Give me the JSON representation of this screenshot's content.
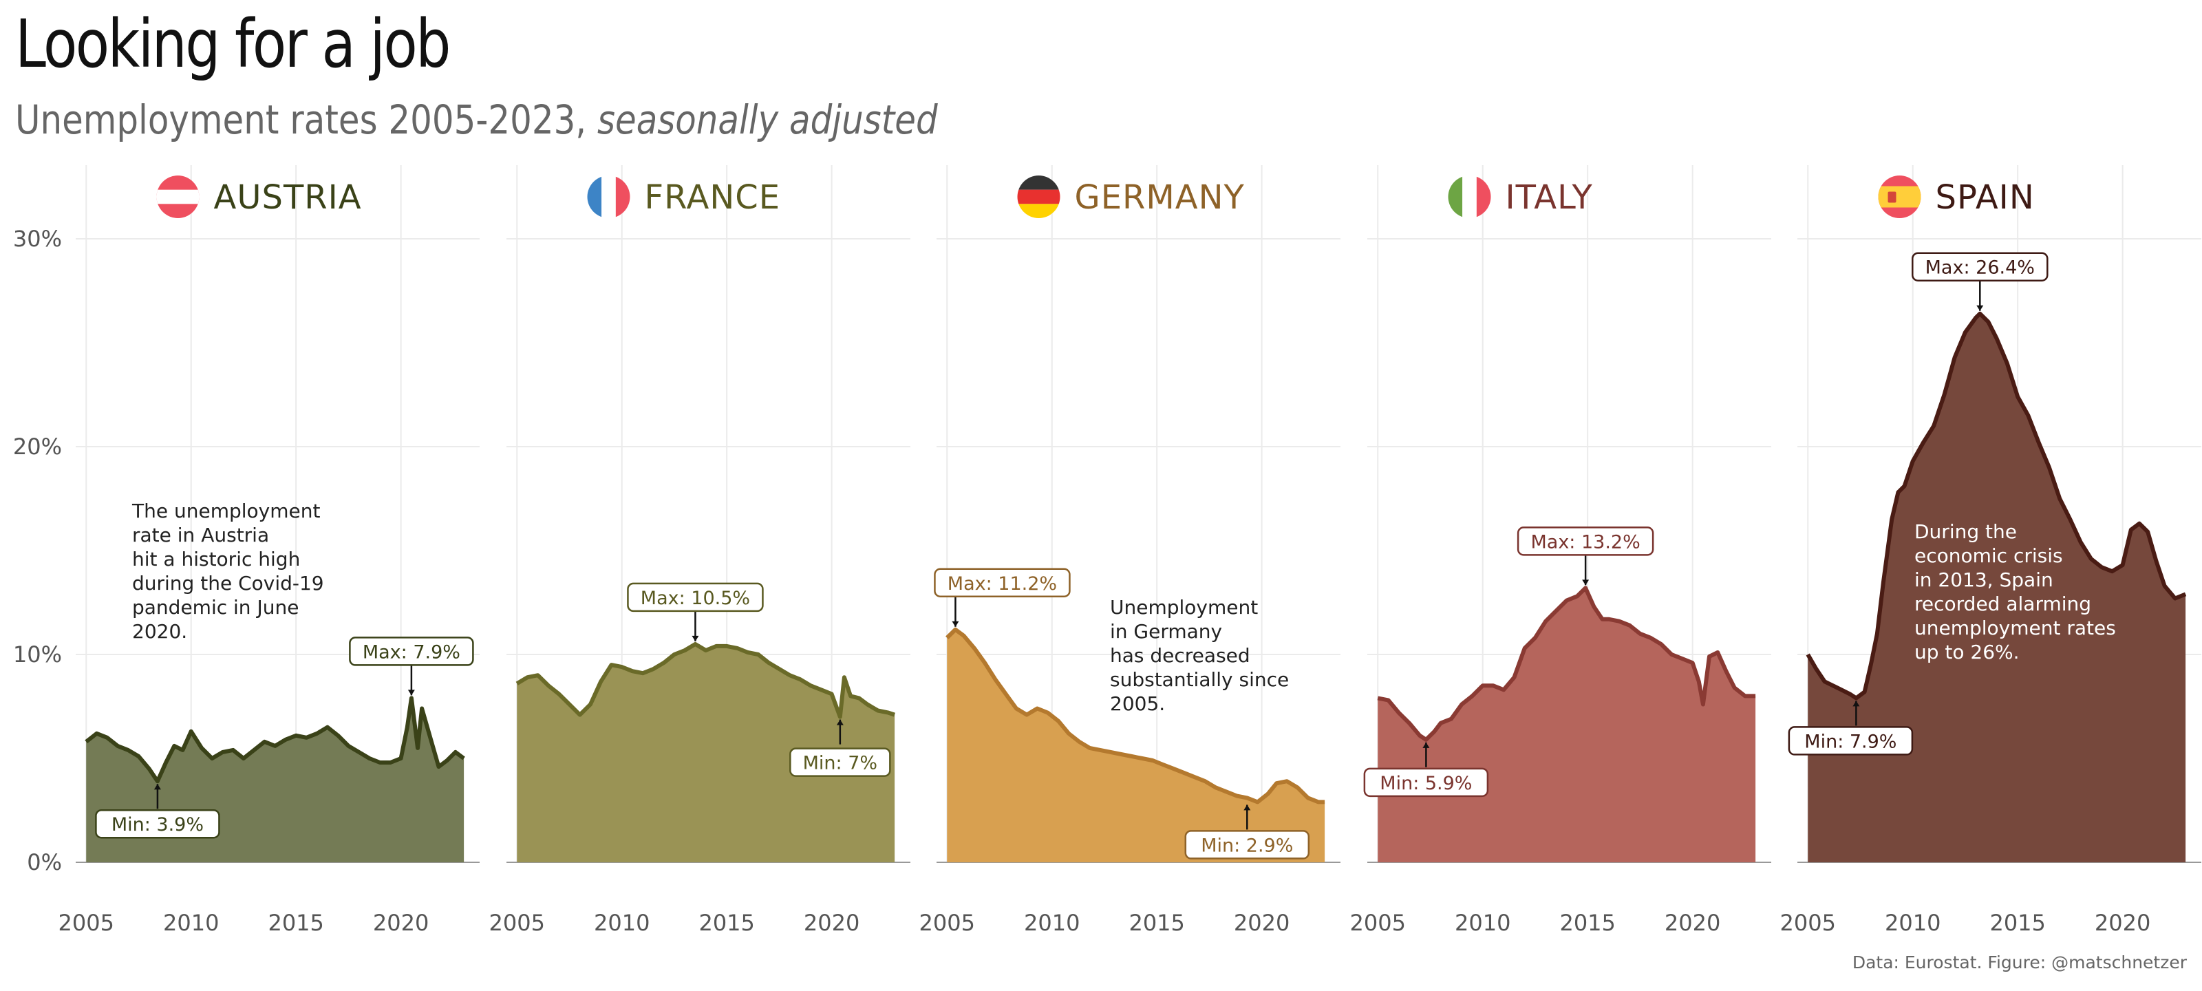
{
  "title": "Looking for a job",
  "subtitle_main": "Unemployment rates 2005-2023,",
  "subtitle_italic": "seasonally adjusted",
  "caption": "Data: Eurostat. Figure: @matschnetzer",
  "colors": {
    "grid": "#ebebeb",
    "axis_text": "#555555"
  },
  "chart_data": {
    "type": "area",
    "xlabel": "",
    "ylabel": "",
    "xlim": [
      2004.5,
      2023.75
    ],
    "ylim": [
      0,
      30
    ],
    "x_ticks": [
      2005,
      2010,
      2015,
      2020
    ],
    "x_tick_labels": [
      "2005",
      "2010",
      "2015",
      "2020"
    ],
    "y_ticks": [
      0,
      10,
      20,
      30
    ],
    "y_tick_labels": [
      "0%",
      "10%",
      "20%",
      "30%"
    ],
    "facets": [
      {
        "name": "AUSTRIA",
        "flag": "austria-flag",
        "line_color": "#3a4218",
        "fill_color": "#747b55",
        "label_color": "#3a4218",
        "x": [
          2005.0,
          2005.5,
          2006.0,
          2006.5,
          2007.0,
          2007.5,
          2008.0,
          2008.4,
          2008.8,
          2009.2,
          2009.6,
          2010.0,
          2010.5,
          2011.0,
          2011.5,
          2012.0,
          2012.5,
          2013.0,
          2013.5,
          2014.0,
          2014.5,
          2015.0,
          2015.5,
          2016.0,
          2016.5,
          2017.0,
          2017.5,
          2018.0,
          2018.5,
          2019.0,
          2019.5,
          2020.0,
          2020.3,
          2020.5,
          2020.8,
          2021.0,
          2021.4,
          2021.8,
          2022.2,
          2022.6,
          2023.0
        ],
        "values": [
          5.8,
          6.2,
          6.0,
          5.6,
          5.4,
          5.1,
          4.5,
          3.9,
          4.8,
          5.6,
          5.4,
          6.3,
          5.5,
          5.0,
          5.3,
          5.4,
          5.0,
          5.4,
          5.8,
          5.6,
          5.9,
          6.1,
          6.0,
          6.2,
          6.5,
          6.1,
          5.6,
          5.3,
          5.0,
          4.8,
          4.8,
          5.0,
          6.5,
          7.9,
          5.5,
          7.4,
          6.0,
          4.6,
          4.9,
          5.3,
          5.0
        ],
        "max": {
          "year": 2020.5,
          "value": 7.9,
          "label": "Max: 7.9%"
        },
        "min": {
          "year": 2008.4,
          "value": 3.9,
          "label": "Min: 3.9%"
        },
        "annotation": [
          "The unemployment",
          "rate in Austria",
          "hit a historic high",
          "during the Covid-19",
          "pandemic in June",
          "2020."
        ]
      },
      {
        "name": "FRANCE",
        "flag": "france-flag",
        "line_color": "#6a6a28",
        "fill_color": "#9a9355",
        "label_color": "#595920",
        "x": [
          2005.0,
          2005.5,
          2006.0,
          2006.5,
          2007.0,
          2007.5,
          2008.0,
          2008.5,
          2009.0,
          2009.5,
          2010.0,
          2010.5,
          2011.0,
          2011.5,
          2012.0,
          2012.5,
          2013.0,
          2013.5,
          2014.0,
          2014.5,
          2015.0,
          2015.5,
          2016.0,
          2016.5,
          2017.0,
          2017.5,
          2018.0,
          2018.5,
          2019.0,
          2019.5,
          2020.0,
          2020.4,
          2020.6,
          2020.9,
          2021.3,
          2021.7,
          2022.2,
          2022.7,
          2023.0
        ],
        "values": [
          8.6,
          8.9,
          9.0,
          8.5,
          8.1,
          7.6,
          7.1,
          7.6,
          8.7,
          9.5,
          9.4,
          9.2,
          9.1,
          9.3,
          9.6,
          10.0,
          10.2,
          10.5,
          10.2,
          10.4,
          10.4,
          10.3,
          10.1,
          10.0,
          9.6,
          9.3,
          9.0,
          8.8,
          8.5,
          8.3,
          8.1,
          7.0,
          8.9,
          8.0,
          7.9,
          7.6,
          7.3,
          7.2,
          7.1
        ],
        "max": {
          "year": 2013.5,
          "value": 10.5,
          "label": "Max: 10.5%"
        },
        "min": {
          "year": 2020.4,
          "value": 7.0,
          "label": "Min: 7%"
        },
        "annotation": []
      },
      {
        "name": "GERMANY",
        "flag": "germany-flag",
        "line_color": "#b4792e",
        "fill_color": "#d8a050",
        "label_color": "#8e6228",
        "x": [
          2005.0,
          2005.4,
          2005.8,
          2006.3,
          2006.8,
          2007.3,
          2007.8,
          2008.3,
          2008.8,
          2009.3,
          2009.8,
          2010.3,
          2010.8,
          2011.3,
          2011.8,
          2012.3,
          2012.8,
          2013.3,
          2013.8,
          2014.3,
          2014.8,
          2015.3,
          2015.8,
          2016.3,
          2016.8,
          2017.3,
          2017.8,
          2018.3,
          2018.8,
          2019.3,
          2019.8,
          2020.3,
          2020.7,
          2021.2,
          2021.7,
          2022.2,
          2022.7,
          2023.0
        ],
        "values": [
          10.8,
          11.2,
          10.9,
          10.3,
          9.6,
          8.8,
          8.1,
          7.4,
          7.1,
          7.4,
          7.2,
          6.8,
          6.2,
          5.8,
          5.5,
          5.4,
          5.3,
          5.2,
          5.1,
          5.0,
          4.9,
          4.7,
          4.5,
          4.3,
          4.1,
          3.9,
          3.6,
          3.4,
          3.2,
          3.1,
          2.9,
          3.3,
          3.8,
          3.9,
          3.6,
          3.1,
          2.9,
          2.9
        ],
        "max": {
          "year": 2005.4,
          "value": 11.2,
          "label": "Max: 11.2%"
        },
        "min": {
          "year": 2019.3,
          "value": 2.9,
          "label": "Min: 2.9%"
        },
        "annotation": [
          "Unemployment",
          "in Germany",
          "has decreased",
          "substantially since",
          "2005."
        ]
      },
      {
        "name": "ITALY",
        "flag": "italy-flag",
        "line_color": "#8a3a33",
        "fill_color": "#b5655c",
        "label_color": "#7a342e",
        "x": [
          2005.0,
          2005.5,
          2006.0,
          2006.5,
          2007.0,
          2007.3,
          2007.7,
          2008.0,
          2008.5,
          2009.0,
          2009.5,
          2010.0,
          2010.5,
          2011.0,
          2011.5,
          2012.0,
          2012.5,
          2013.0,
          2013.5,
          2014.0,
          2014.5,
          2014.9,
          2015.3,
          2015.7,
          2016.0,
          2016.5,
          2017.0,
          2017.5,
          2018.0,
          2018.5,
          2019.0,
          2019.5,
          2020.0,
          2020.3,
          2020.5,
          2020.8,
          2021.2,
          2021.6,
          2022.0,
          2022.5,
          2023.0
        ],
        "values": [
          7.9,
          7.8,
          7.2,
          6.7,
          6.1,
          5.9,
          6.3,
          6.7,
          6.9,
          7.6,
          8.0,
          8.5,
          8.5,
          8.3,
          8.9,
          10.3,
          10.8,
          11.6,
          12.1,
          12.6,
          12.8,
          13.2,
          12.3,
          11.7,
          11.7,
          11.6,
          11.4,
          11.0,
          10.8,
          10.5,
          10.0,
          9.8,
          9.6,
          8.7,
          7.6,
          9.9,
          10.1,
          9.2,
          8.4,
          8.0,
          8.0
        ],
        "max": {
          "year": 2014.9,
          "value": 13.2,
          "label": "Max: 13.2%"
        },
        "min": {
          "year": 2007.3,
          "value": 5.9,
          "label": "Min: 5.9%"
        },
        "annotation": []
      },
      {
        "name": "SPAIN",
        "flag": "spain-flag",
        "line_color": "#4a1c14",
        "fill_color": "#76483c",
        "label_color": "#3e1a14",
        "x": [
          2005.0,
          2005.4,
          2005.8,
          2006.2,
          2006.6,
          2007.0,
          2007.3,
          2007.7,
          2008.0,
          2008.3,
          2008.6,
          2009.0,
          2009.3,
          2009.6,
          2010.0,
          2010.5,
          2011.0,
          2011.5,
          2012.0,
          2012.5,
          2013.0,
          2013.2,
          2013.6,
          2014.0,
          2014.5,
          2015.0,
          2015.5,
          2016.0,
          2016.5,
          2017.0,
          2017.5,
          2018.0,
          2018.5,
          2019.0,
          2019.5,
          2020.0,
          2020.4,
          2020.8,
          2021.2,
          2021.6,
          2022.0,
          2022.5,
          2023.0
        ],
        "values": [
          10.0,
          9.3,
          8.7,
          8.5,
          8.3,
          8.1,
          7.9,
          8.2,
          9.5,
          11.0,
          13.5,
          16.5,
          17.8,
          18.1,
          19.3,
          20.2,
          21.0,
          22.5,
          24.3,
          25.5,
          26.2,
          26.4,
          26.0,
          25.2,
          24.0,
          22.4,
          21.5,
          20.2,
          19.0,
          17.5,
          16.5,
          15.4,
          14.6,
          14.2,
          14.0,
          14.3,
          16.0,
          16.3,
          15.9,
          14.5,
          13.3,
          12.7,
          12.9
        ],
        "max": {
          "year": 2013.2,
          "value": 26.4,
          "label": "Max: 26.4%"
        },
        "min": {
          "year": 2007.3,
          "value": 7.9,
          "label": "Min: 7.9%"
        },
        "annotation": [
          "During the",
          "economic crisis",
          "in 2013, Spain",
          "recorded alarming",
          "unemployment rates",
          "up to 26%."
        ]
      }
    ]
  }
}
